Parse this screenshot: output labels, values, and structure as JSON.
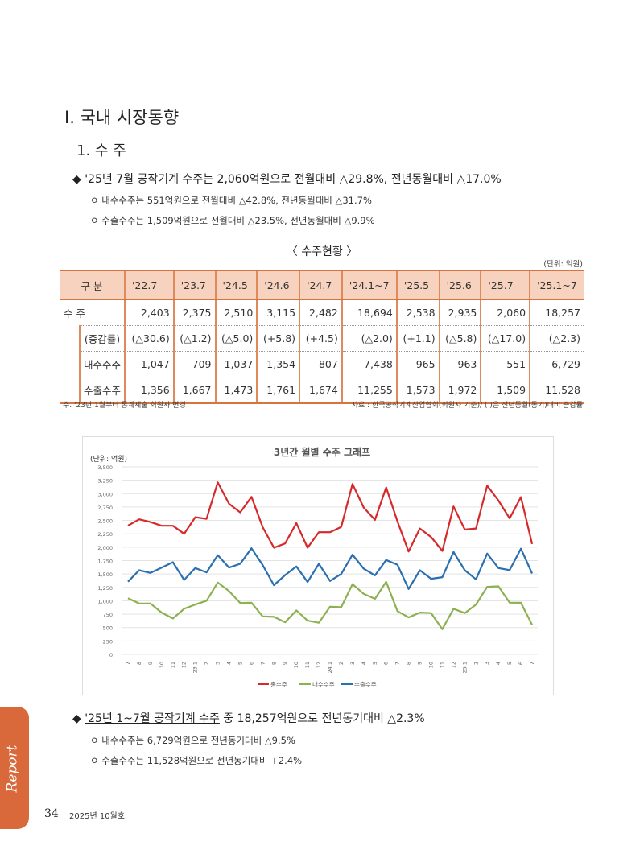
{
  "section_title": "Ⅰ. 국내 시장동향",
  "subsection_title": "1. 수 주",
  "summary1": {
    "diamond": "◆",
    "headline_underlined": "'25년 7월 공작기계 수주",
    "headline_rest": "는 2,060억원으로 전월대비 △29.8%, 전년동월대비 △17.0%",
    "items": [
      "ㅇ 내수수주는 551억원으로 전월대비 △42.8%, 전년동월대비 △31.7%",
      "ㅇ 수출수주는 1,509억원으로 전월대비 △23.5%, 전년동월대비 △9.9%"
    ]
  },
  "table": {
    "caption": "〈 수주현황 〉",
    "unit": "(단위: 억원)",
    "headers": [
      "구 분",
      "'22.7",
      "'23.7",
      "'24.5",
      "'24.6",
      "'24.7",
      "'24.1~7",
      "'25.5",
      "'25.6",
      "'25.7",
      "'25.1~7"
    ],
    "rows": [
      {
        "label": "수  주",
        "values": [
          "2,403",
          "2,375",
          "2,510",
          "3,115",
          "2,482",
          "18,694",
          "2,538",
          "2,935",
          "2,060",
          "18,257"
        ]
      },
      {
        "label": "(증감률)",
        "values": [
          "(△30.6)",
          "(△1.2)",
          "(△5.0)",
          "(+5.8)",
          "(+4.5)",
          "(△2.0)",
          "(+1.1)",
          "(△5.8)",
          "(△17.0)",
          "(△2.3)"
        ]
      },
      {
        "label": "내수수주",
        "values": [
          "1,047",
          "709",
          "1,037",
          "1,354",
          "807",
          "7,438",
          "965",
          "963",
          "551",
          "6,729"
        ]
      },
      {
        "label": "수출수주",
        "values": [
          "1,356",
          "1,667",
          "1,473",
          "1,761",
          "1,674",
          "11,255",
          "1,573",
          "1,972",
          "1,509",
          "11,528"
        ]
      }
    ],
    "note_left": "주. '23년 1월부터 통계제출 회원사 변경",
    "note_right": "자료 : 한국공작기계산업협회(회원사 기준)/ ( )은 전년동월(동기)대비 증감률"
  },
  "chart_data": {
    "type": "line",
    "title": "3년간 월별 수주 그래프",
    "ylabel": "(단위: 억원)",
    "ylim": [
      0,
      3500
    ],
    "yticks": [
      "0",
      "250",
      "500",
      "750",
      "1,000",
      "1,250",
      "1,500",
      "1,750",
      "2,000",
      "2,250",
      "2,500",
      "2,750",
      "3,000",
      "3,250",
      "3,500"
    ],
    "grid": true,
    "legend": "bottom",
    "categories": [
      "7",
      "8",
      "9",
      "10",
      "11",
      "12",
      "23.1",
      "2",
      "3",
      "4",
      "5",
      "6",
      "7",
      "8",
      "9",
      "10",
      "11",
      "12",
      "24.1",
      "2",
      "3",
      "4",
      "5",
      "6",
      "7",
      "8",
      "9",
      "10",
      "11",
      "12",
      "25.1",
      "2",
      "3",
      "4",
      "5",
      "6",
      "7"
    ],
    "series": [
      {
        "name": "총수주",
        "color": "#d62a2a",
        "values": [
          2403,
          2520,
          2470,
          2400,
          2400,
          2250,
          2560,
          2530,
          3210,
          2810,
          2650,
          2940,
          2375,
          1990,
          2070,
          2450,
          1990,
          2280,
          2280,
          2380,
          3180,
          2740,
          2510,
          3115,
          2482,
          1920,
          2350,
          2190,
          1930,
          2760,
          2330,
          2350,
          3150,
          2870,
          2538,
          2935,
          2060
        ]
      },
      {
        "name": "내수수주",
        "color": "#8db050",
        "values": [
          1047,
          950,
          950,
          780,
          670,
          850,
          930,
          1000,
          1340,
          1180,
          960,
          965,
          709,
          700,
          600,
          820,
          630,
          590,
          890,
          880,
          1310,
          1130,
          1037,
          1354,
          807,
          690,
          780,
          770,
          470,
          850,
          770,
          930,
          1260,
          1270,
          965,
          963,
          551
        ]
      },
      {
        "name": "수출수주",
        "color": "#2a6fb0",
        "values": [
          1356,
          1570,
          1520,
          1620,
          1720,
          1390,
          1610,
          1530,
          1850,
          1620,
          1690,
          1980,
          1667,
          1290,
          1480,
          1640,
          1350,
          1690,
          1370,
          1500,
          1860,
          1600,
          1473,
          1761,
          1674,
          1220,
          1570,
          1410,
          1440,
          1910,
          1570,
          1400,
          1880,
          1610,
          1573,
          1972,
          1509
        ]
      }
    ]
  },
  "summary2": {
    "diamond": "◆",
    "headline_underlined": "'25년 1~7월 공작기계 수주",
    "headline_rest": " 중 18,257억원으로 전년동기대비 △2.3%",
    "items": [
      "ㅇ 내수수주는 6,729억원으로 전년동기대비 △9.5%",
      "ㅇ 수출수주는 11,528억원으로 전년동기대비 +2.4%"
    ]
  },
  "footer": {
    "side_tab": "Report",
    "page_number": "34",
    "issue": "2025년 10월호"
  },
  "colors": {
    "accent": "#d9683a",
    "table_header": "#f7d3bf"
  }
}
